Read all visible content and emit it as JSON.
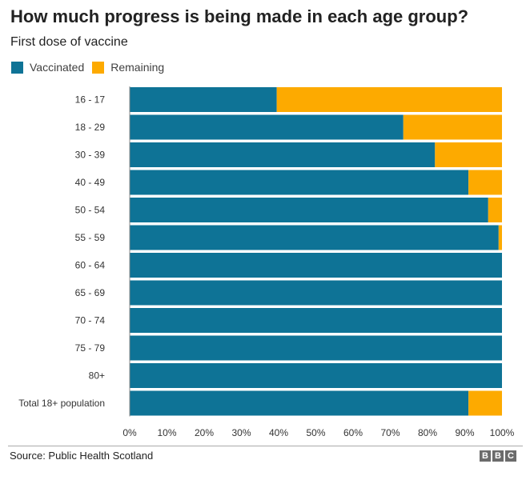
{
  "header": {
    "title": "How much progress is being made in each age group?",
    "subtitle": "First dose of vaccine"
  },
  "legend": {
    "vaccinated_label": "Vaccinated",
    "remaining_label": "Remaining"
  },
  "colors": {
    "vaccinated": "#0e7396",
    "remaining": "#fdaa00"
  },
  "footer": {
    "source": "Source: Public Health Scotland",
    "logo_letters": [
      "B",
      "B",
      "C"
    ]
  },
  "chart_data": {
    "type": "bar",
    "orientation": "horizontal",
    "stacked": true,
    "title": "How much progress is being made in each age group?",
    "subtitle": "First dose of vaccine",
    "categories": [
      "16 - 17",
      "18 - 29",
      "30 - 39",
      "40 - 49",
      "50 - 54",
      "55 - 59",
      "60 - 64",
      "65 - 69",
      "70 - 74",
      "75 - 79",
      "80+",
      "Total 18+ population"
    ],
    "series": [
      {
        "name": "Vaccinated",
        "values": [
          39.5,
          73.5,
          82,
          91,
          96.3,
          99.1,
          100,
          100,
          100,
          100,
          100,
          91
        ]
      },
      {
        "name": "Remaining",
        "values": [
          60.5,
          26.5,
          18,
          9,
          3.7,
          0.9,
          0,
          0,
          0,
          0,
          0,
          9
        ]
      }
    ],
    "xlim": [
      0,
      100
    ],
    "xticks": [
      "0%",
      "10%",
      "20%",
      "30%",
      "40%",
      "50%",
      "60%",
      "70%",
      "80%",
      "90%",
      "100%"
    ],
    "xlabel": "",
    "ylabel": "",
    "legend_position": "top-left",
    "grid": false
  }
}
